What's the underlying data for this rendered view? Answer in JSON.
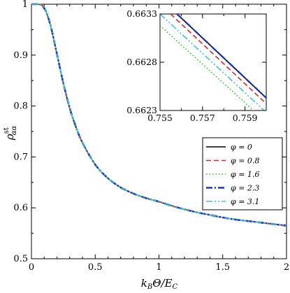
{
  "chart_data": [
    {
      "type": "line",
      "title": "",
      "xlabel": "k_B Θ/E_C",
      "ylabel": "ρ^st_αα",
      "xlim": [
        0,
        2
      ],
      "ylim": [
        0.5,
        1.0
      ],
      "x_ticks": [
        0,
        0.5,
        1,
        1.5,
        2
      ],
      "x_tick_labels": [
        "0",
        "0.5",
        "1",
        "1.5",
        "2"
      ],
      "y_ticks": [
        0.5,
        0.6,
        0.7,
        0.8,
        0.9,
        1.0
      ],
      "y_tick_labels": [
        "0.5",
        "0.6",
        "0.7",
        "0.8",
        "0.9",
        "1"
      ],
      "grid": false,
      "legend_position": "inset-right",
      "x": [
        0,
        0.05,
        0.08,
        0.1,
        0.12,
        0.15,
        0.18,
        0.2,
        0.25,
        0.3,
        0.35,
        0.4,
        0.5,
        0.6,
        0.7,
        0.8,
        0.9,
        1.0,
        1.1,
        1.2,
        1.3,
        1.4,
        1.5,
        1.6,
        1.7,
        1.8,
        1.9,
        2.0
      ],
      "series": [
        {
          "name": "φ = 0",
          "color": "#000000",
          "dash": "solid",
          "values": [
            1.0,
            1.0,
            0.998,
            0.992,
            0.982,
            0.958,
            0.925,
            0.902,
            0.845,
            0.796,
            0.758,
            0.728,
            0.685,
            0.658,
            0.64,
            0.628,
            0.619,
            0.612,
            0.604,
            0.597,
            0.591,
            0.586,
            0.581,
            0.577,
            0.574,
            0.571,
            0.568,
            0.565
          ]
        },
        {
          "name": "φ = 0.8",
          "color": "#e8202a",
          "dash": "dashed",
          "values": [
            1.0,
            1.0,
            0.998,
            0.992,
            0.982,
            0.958,
            0.925,
            0.902,
            0.845,
            0.796,
            0.758,
            0.728,
            0.685,
            0.658,
            0.64,
            0.628,
            0.619,
            0.612,
            0.604,
            0.597,
            0.591,
            0.586,
            0.581,
            0.577,
            0.574,
            0.571,
            0.568,
            0.565
          ]
        },
        {
          "name": "φ = 1.6",
          "color": "#22cc22",
          "dash": "dotted",
          "values": [
            1.0,
            1.0,
            0.998,
            0.992,
            0.982,
            0.958,
            0.925,
            0.902,
            0.845,
            0.796,
            0.758,
            0.728,
            0.685,
            0.658,
            0.64,
            0.628,
            0.619,
            0.612,
            0.604,
            0.597,
            0.591,
            0.586,
            0.581,
            0.577,
            0.574,
            0.571,
            0.568,
            0.565
          ]
        },
        {
          "name": "φ = 2.3",
          "color": "#1a35c8",
          "dash": "dashdot",
          "values": [
            1.0,
            1.0,
            0.998,
            0.992,
            0.982,
            0.958,
            0.925,
            0.902,
            0.845,
            0.796,
            0.758,
            0.728,
            0.685,
            0.658,
            0.64,
            0.628,
            0.619,
            0.612,
            0.604,
            0.597,
            0.591,
            0.586,
            0.581,
            0.577,
            0.574,
            0.571,
            0.568,
            0.565
          ]
        },
        {
          "name": "φ = 3.1",
          "color": "#3cc8c8",
          "dash": "dashdotdot",
          "values": [
            1.0,
            1.0,
            0.998,
            0.992,
            0.982,
            0.958,
            0.925,
            0.902,
            0.845,
            0.796,
            0.758,
            0.728,
            0.685,
            0.658,
            0.64,
            0.628,
            0.619,
            0.612,
            0.604,
            0.597,
            0.591,
            0.586,
            0.581,
            0.577,
            0.574,
            0.571,
            0.568,
            0.565
          ]
        }
      ]
    },
    {
      "type": "line",
      "title": "",
      "xlabel": "",
      "ylabel": "",
      "xlim": [
        0.755,
        0.76
      ],
      "ylim": [
        0.6623,
        0.6633
      ],
      "x_ticks": [
        0.755,
        0.757,
        0.759
      ],
      "x_tick_labels": [
        "0.755",
        "0.757",
        "0.759"
      ],
      "y_ticks": [
        0.6623,
        0.6628,
        0.6633
      ],
      "y_tick_labels": [
        "0.6623",
        "0.6628",
        "0.6633"
      ],
      "grid": false,
      "series": [
        {
          "name": "φ = 0",
          "color": "#000000",
          "dash": "solid",
          "x": [
            0.7558,
            0.76
          ],
          "values": [
            0.6633,
            0.66243
          ]
        },
        {
          "name": "φ = 0.8",
          "color": "#e8202a",
          "dash": "dashed",
          "x": [
            0.7555,
            0.76
          ],
          "values": [
            0.6633,
            0.66237
          ]
        },
        {
          "name": "φ = 1.6",
          "color": "#22cc22",
          "dash": "dotted",
          "x": [
            0.755,
            0.76
          ],
          "values": [
            0.66318,
            0.66218
          ]
        },
        {
          "name": "φ = 2.3",
          "color": "#1a35c8",
          "dash": "dashdot",
          "x": [
            0.7558,
            0.76
          ],
          "values": [
            0.6633,
            0.66243
          ]
        },
        {
          "name": "φ = 3.1",
          "color": "#3cc8c8",
          "dash": "dashdotdot",
          "x": [
            0.755,
            0.76
          ],
          "values": [
            0.6633,
            0.66228
          ]
        }
      ]
    }
  ],
  "axes_labels": {
    "x_main": "k",
    "x_sub": "B",
    "x_rest": "Θ/E",
    "x_sub2": "C",
    "y_main": "ρ",
    "y_sup": "st",
    "y_sub": "αα"
  }
}
